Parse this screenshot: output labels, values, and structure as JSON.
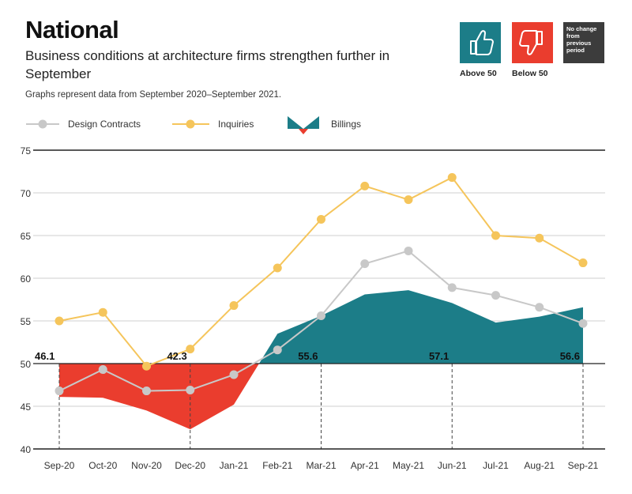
{
  "header": {
    "title": "National",
    "subtitle": "Business conditions at architecture firms strengthen further in September",
    "note": "Graphs represent data from September 2020–September 2021."
  },
  "badges": {
    "above_label": "Above 50",
    "below_label": "Below 50",
    "no_change_text": "No change from previous period",
    "above_color": "#1c7d88",
    "below_color": "#ea3d2e",
    "no_change_color": "#3c3c3c",
    "above_icon": "thumbs-up-icon",
    "below_icon": "thumbs-down-icon"
  },
  "legend": {
    "design": "Design Contracts",
    "inquiries": "Inquiries",
    "billings": "Billings"
  },
  "chart_data": {
    "type": "line",
    "categories": [
      "Sep-20",
      "Oct-20",
      "Nov-20",
      "Dec-20",
      "Jan-21",
      "Feb-21",
      "Mar-21",
      "Apr-21",
      "May-21",
      "Jun-21",
      "Jul-21",
      "Aug-21",
      "Sep-21"
    ],
    "ylim": [
      40,
      75
    ],
    "yticks": [
      40,
      45,
      50,
      55,
      60,
      65,
      70,
      75
    ],
    "baseline": 50,
    "series": [
      {
        "name": "Design Contracts",
        "color": "#c8c8c8",
        "values": [
          46.8,
          49.3,
          46.8,
          46.9,
          48.7,
          51.6,
          55.6,
          61.7,
          63.2,
          58.9,
          58.0,
          56.6,
          54.7
        ]
      },
      {
        "name": "Inquiries",
        "color": "#f5c55b",
        "values": [
          55.0,
          56.0,
          49.7,
          51.7,
          56.8,
          61.2,
          66.9,
          70.8,
          69.2,
          71.8,
          65.0,
          64.7,
          61.8
        ]
      },
      {
        "name": "Billings",
        "type": "area",
        "above_color": "#1c7d88",
        "below_color": "#ea3d2e",
        "values": [
          46.1,
          46.0,
          44.5,
          42.3,
          45.2,
          53.5,
          55.6,
          58.1,
          58.6,
          57.1,
          54.8,
          55.5,
          56.6
        ]
      }
    ],
    "annotations": [
      {
        "index": 0,
        "text": "46.1"
      },
      {
        "index": 3,
        "text": "42.3"
      },
      {
        "index": 6,
        "text": "55.6"
      },
      {
        "index": 9,
        "text": "57.1"
      },
      {
        "index": 12,
        "text": "56.6"
      }
    ],
    "grid": true
  }
}
